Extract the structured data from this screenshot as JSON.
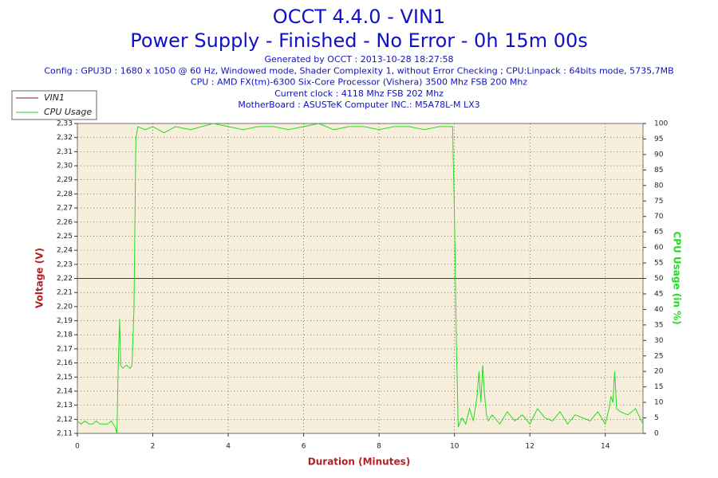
{
  "chart_data": {
    "type": "line",
    "title": "OCCT 4.4.0 - VIN1",
    "subtitle": "Power Supply - Finished - No Error - 0h 15m 00s",
    "info_lines": [
      "Generated by OCCT : 2013-10-28 18:27:58",
      "Config : GPU3D : 1680 x 1050 @ 60 Hz, Windowed mode, Shader Complexity 1, without Error Checking ; CPU:Linpack : 64bits mode, 5735,7MB",
      "CPU : AMD FX(tm)-6300 Six-Core Processor (Vishera) 3500 Mhz FSB 200 Mhz",
      "Current clock : 4118 Mhz FSB 202 Mhz",
      "MotherBoard : ASUSTeK Computer INC.: M5A78L-M LX3"
    ],
    "x_label": "Duration (Minutes)",
    "y_label": "Voltage (V)",
    "y2_label": "CPU Usage (in %)",
    "xlim": [
      0,
      15
    ],
    "xticks": [
      0,
      2,
      4,
      6,
      8,
      10,
      12,
      14
    ],
    "ylim": [
      2.11,
      2.33
    ],
    "yticks": [
      {
        "value": 2.11,
        "label": "2,11"
      },
      {
        "value": 2.12,
        "label": "2,12"
      },
      {
        "value": 2.13,
        "label": "2,13"
      },
      {
        "value": 2.14,
        "label": "2,14"
      },
      {
        "value": 2.15,
        "label": "2,15"
      },
      {
        "value": 2.16,
        "label": "2,16"
      },
      {
        "value": 2.17,
        "label": "2,17"
      },
      {
        "value": 2.18,
        "label": "2,18"
      },
      {
        "value": 2.19,
        "label": "2,19"
      },
      {
        "value": 2.2,
        "label": "2,20"
      },
      {
        "value": 2.21,
        "label": "2,21"
      },
      {
        "value": 2.22,
        "label": "2,22"
      },
      {
        "value": 2.23,
        "label": "2,23"
      },
      {
        "value": 2.24,
        "label": "2,24"
      },
      {
        "value": 2.25,
        "label": "2,25"
      },
      {
        "value": 2.26,
        "label": "2,26"
      },
      {
        "value": 2.27,
        "label": "2,27"
      },
      {
        "value": 2.28,
        "label": "2,28"
      },
      {
        "value": 2.29,
        "label": "2,29"
      },
      {
        "value": 2.3,
        "label": "2,30"
      },
      {
        "value": 2.31,
        "label": "2,31"
      },
      {
        "value": 2.32,
        "label": "2,32"
      },
      {
        "value": 2.33,
        "label": "2,33"
      }
    ],
    "y2lim": [
      0,
      100
    ],
    "y2ticks": [
      0,
      5,
      10,
      15,
      20,
      25,
      30,
      35,
      40,
      45,
      50,
      55,
      60,
      65,
      70,
      75,
      80,
      85,
      90,
      95,
      100
    ],
    "grid": true,
    "legend": "top-left",
    "series": [
      {
        "name": "VIN1",
        "color": "#8b1a1a",
        "x": [
          0,
          15
        ],
        "values": [
          2.22,
          2.22
        ]
      },
      {
        "name": "CPU Usage",
        "color": "#22dd22",
        "axis": "y2",
        "x": [
          0,
          0.1,
          0.2,
          0.3,
          0.4,
          0.5,
          0.6,
          0.7,
          0.8,
          0.9,
          1.0,
          1.05,
          1.08,
          1.12,
          1.15,
          1.2,
          1.3,
          1.4,
          1.45,
          1.5,
          1.55,
          1.6,
          1.8,
          2.0,
          2.3,
          2.6,
          3.0,
          3.3,
          3.6,
          4.0,
          4.4,
          4.8,
          5.2,
          5.6,
          6.0,
          6.4,
          6.8,
          7.2,
          7.6,
          8.0,
          8.4,
          8.8,
          9.2,
          9.6,
          9.9,
          9.95,
          10.0,
          10.05,
          10.1,
          10.2,
          10.3,
          10.4,
          10.5,
          10.6,
          10.65,
          10.7,
          10.75,
          10.8,
          10.85,
          10.9,
          11.0,
          11.2,
          11.4,
          11.6,
          11.8,
          12.0,
          12.2,
          12.4,
          12.6,
          12.8,
          13.0,
          13.2,
          13.4,
          13.6,
          13.8,
          14.0,
          14.1,
          14.15,
          14.2,
          14.25,
          14.3,
          14.4,
          14.6,
          14.8,
          15.0
        ],
        "values": [
          4,
          3,
          4,
          3,
          3,
          4,
          3,
          3,
          3,
          4,
          2,
          0,
          20,
          37,
          22,
          21,
          22,
          21,
          22,
          40,
          95,
          99,
          98,
          99,
          97,
          99,
          98,
          99,
          100,
          99,
          98,
          99,
          99,
          98,
          99,
          100,
          98,
          99,
          99,
          98,
          99,
          99,
          98,
          99,
          99,
          99,
          70,
          30,
          2,
          5,
          3,
          8,
          4,
          12,
          20,
          10,
          22,
          12,
          6,
          4,
          6,
          3,
          7,
          4,
          6,
          3,
          8,
          5,
          4,
          7,
          3,
          6,
          5,
          4,
          7,
          3,
          8,
          12,
          10,
          20,
          8,
          7,
          6,
          8,
          3
        ]
      }
    ]
  }
}
